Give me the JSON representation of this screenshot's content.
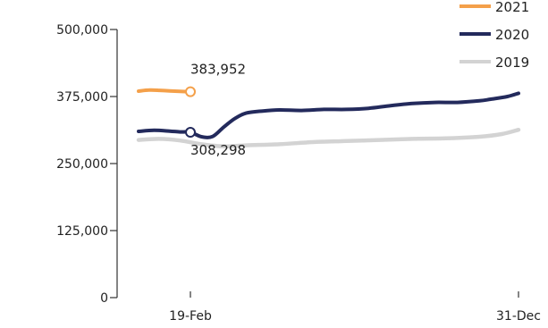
{
  "chart_data": {
    "type": "line",
    "x_ticks": [
      "19-Feb",
      "31-Dec"
    ],
    "y_ticks": [
      "0",
      "125,000",
      "250,000",
      "375,000",
      "500,000"
    ],
    "ylim": [
      0,
      500000
    ],
    "grid": false,
    "legend_position": "top-right",
    "series": [
      {
        "name": "2021",
        "color": "#f4a04a",
        "x": [
          0,
          10,
          20,
          30,
          40,
          50
        ],
        "values": [
          385000,
          387000,
          386500,
          385500,
          384500,
          383952
        ]
      },
      {
        "name": "2020",
        "color": "#232a5c",
        "x": [
          0,
          15,
          30,
          40,
          50,
          60,
          70,
          80,
          90,
          100,
          115,
          130,
          150,
          170,
          190,
          210,
          230,
          250,
          270,
          290,
          310,
          320,
          335,
          345
        ],
        "values": [
          310000,
          312000,
          310500,
          309000,
          308298,
          300000,
          300500,
          318000,
          334000,
          344000,
          348000,
          350000,
          349000,
          351000,
          351000,
          353000,
          358000,
          362000,
          364000,
          364000,
          367000,
          370000,
          375000,
          381000
        ]
      },
      {
        "name": "2019",
        "color": "#d3d3d3",
        "x": [
          0,
          20,
          40,
          60,
          80,
          100,
          130,
          160,
          190,
          220,
          250,
          280,
          310,
          330,
          345
        ],
        "values": [
          294000,
          296000,
          293000,
          286000,
          282000,
          284000,
          286000,
          290000,
          292000,
          294000,
          296000,
          297000,
          300000,
          305000,
          313000
        ]
      }
    ],
    "annotations": [
      {
        "text": "383,952",
        "series": "2021",
        "x": 50,
        "value": 383952
      },
      {
        "text": "308,298",
        "series": "2020",
        "x": 50,
        "value": 308298
      }
    ]
  }
}
